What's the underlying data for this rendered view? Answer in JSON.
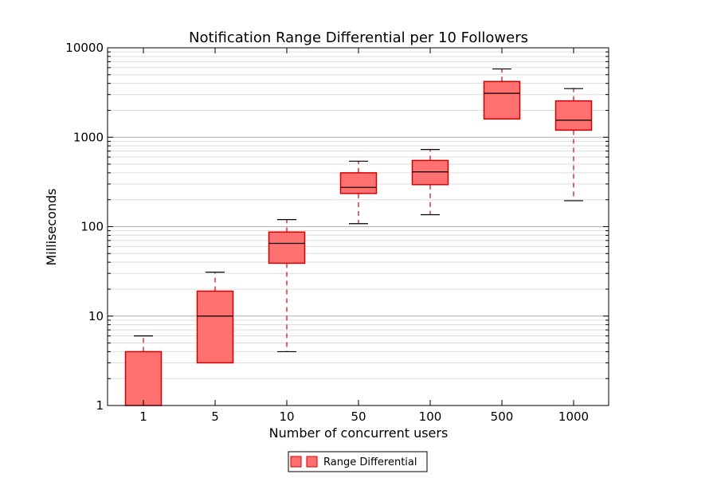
{
  "chart_data": {
    "type": "box",
    "title": "Notification Range Differential per 10 Followers",
    "xlabel": "Number of concurrent users",
    "ylabel": "Milliseconds",
    "yscale": "log",
    "ylim": [
      1,
      10000
    ],
    "yticks": [
      "1",
      "10",
      "100",
      "1000",
      "10000"
    ],
    "grid": true,
    "legend_placement": "bottom-center",
    "series": [
      {
        "name": "Range Differential",
        "color": "#ff7070",
        "edge_color": "#d40000",
        "boxes": [
          {
            "category": "1",
            "whisker_low": 1,
            "q1": 1,
            "median": 1,
            "q3": 4,
            "whisker_high": 6
          },
          {
            "category": "5",
            "whisker_low": 3,
            "q1": 3,
            "median": 10,
            "q3": 19,
            "whisker_high": 31
          },
          {
            "category": "10",
            "whisker_low": 4,
            "q1": 39,
            "median": 65,
            "q3": 87,
            "whisker_high": 120
          },
          {
            "category": "50",
            "whisker_low": 108,
            "q1": 235,
            "median": 275,
            "q3": 400,
            "whisker_high": 540
          },
          {
            "category": "100",
            "whisker_low": 136,
            "q1": 295,
            "median": 410,
            "q3": 550,
            "whisker_high": 730
          },
          {
            "category": "500",
            "whisker_low": 1600,
            "q1": 1600,
            "median": 3100,
            "q3": 4200,
            "whisker_high": 5800
          },
          {
            "category": "1000",
            "whisker_low": 195,
            "q1": 1200,
            "median": 1550,
            "q3": 2550,
            "whisker_high": 3500
          }
        ]
      }
    ]
  }
}
